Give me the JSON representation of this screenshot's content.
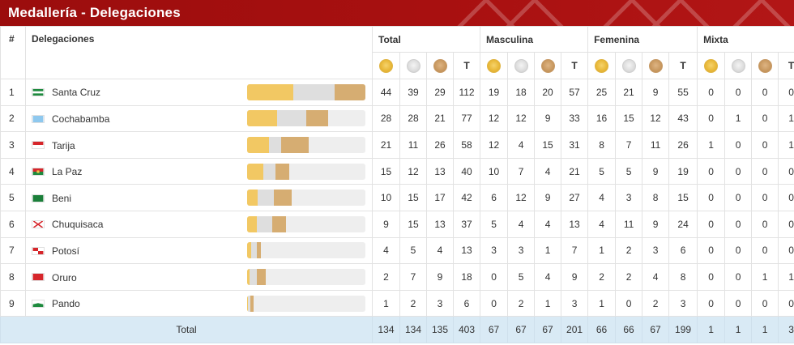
{
  "header": {
    "title": "Medallería - Delegaciones"
  },
  "columns": {
    "num": "#",
    "delegaciones": "Delegaciones",
    "groups": [
      "Total",
      "Masculina",
      "Femenina",
      "Mixta"
    ],
    "t_label": "T"
  },
  "colors": {
    "header": "#a81010",
    "gold": "#f2c863",
    "silver": "#dedede",
    "bronze": "#d6ad72",
    "total_row": "#d9eaf5"
  },
  "rows": [
    {
      "num": "1",
      "name": "Santa Cruz",
      "flag": "santa-cruz-flag",
      "total": [
        44,
        39,
        29,
        112
      ],
      "masculina": [
        19,
        18,
        20,
        57
      ],
      "femenina": [
        25,
        21,
        9,
        55
      ],
      "mixta": [
        0,
        0,
        0,
        0
      ]
    },
    {
      "num": "2",
      "name": "Cochabamba",
      "flag": "cochabamba-flag",
      "total": [
        28,
        28,
        21,
        77
      ],
      "masculina": [
        12,
        12,
        9,
        33
      ],
      "femenina": [
        16,
        15,
        12,
        43
      ],
      "mixta": [
        0,
        1,
        0,
        1
      ]
    },
    {
      "num": "3",
      "name": "Tarija",
      "flag": "tarija-flag",
      "total": [
        21,
        11,
        26,
        58
      ],
      "masculina": [
        12,
        4,
        15,
        31
      ],
      "femenina": [
        8,
        7,
        11,
        26
      ],
      "mixta": [
        1,
        0,
        0,
        1
      ]
    },
    {
      "num": "4",
      "name": "La Paz",
      "flag": "la-paz-flag",
      "total": [
        15,
        12,
        13,
        40
      ],
      "masculina": [
        10,
        7,
        4,
        21
      ],
      "femenina": [
        5,
        5,
        9,
        19
      ],
      "mixta": [
        0,
        0,
        0,
        0
      ]
    },
    {
      "num": "5",
      "name": "Beni",
      "flag": "beni-flag",
      "total": [
        10,
        15,
        17,
        42
      ],
      "masculina": [
        6,
        12,
        9,
        27
      ],
      "femenina": [
        4,
        3,
        8,
        15
      ],
      "mixta": [
        0,
        0,
        0,
        0
      ]
    },
    {
      "num": "6",
      "name": "Chuquisaca",
      "flag": "chuquisaca-flag",
      "total": [
        9,
        15,
        13,
        37
      ],
      "masculina": [
        5,
        4,
        4,
        13
      ],
      "femenina": [
        4,
        11,
        9,
        24
      ],
      "mixta": [
        0,
        0,
        0,
        0
      ]
    },
    {
      "num": "7",
      "name": "Potosí",
      "flag": "potosi-flag",
      "total": [
        4,
        5,
        4,
        13
      ],
      "masculina": [
        3,
        3,
        1,
        7
      ],
      "femenina": [
        1,
        2,
        3,
        6
      ],
      "mixta": [
        0,
        0,
        0,
        0
      ]
    },
    {
      "num": "8",
      "name": "Oruro",
      "flag": "oruro-flag",
      "total": [
        2,
        7,
        9,
        18
      ],
      "masculina": [
        0,
        5,
        4,
        9
      ],
      "femenina": [
        2,
        2,
        4,
        8
      ],
      "mixta": [
        0,
        0,
        1,
        1
      ]
    },
    {
      "num": "9",
      "name": "Pando",
      "flag": "pando-flag",
      "total": [
        1,
        2,
        3,
        6
      ],
      "masculina": [
        0,
        2,
        1,
        3
      ],
      "femenina": [
        1,
        0,
        2,
        3
      ],
      "mixta": [
        0,
        0,
        0,
        0
      ]
    }
  ],
  "totals": {
    "label": "Total",
    "total": [
      134,
      134,
      135,
      403
    ],
    "masculina": [
      67,
      67,
      67,
      201
    ],
    "femenina": [
      66,
      66,
      67,
      199
    ],
    "mixta": [
      1,
      1,
      1,
      3
    ]
  },
  "bar_scale_max": 112
}
